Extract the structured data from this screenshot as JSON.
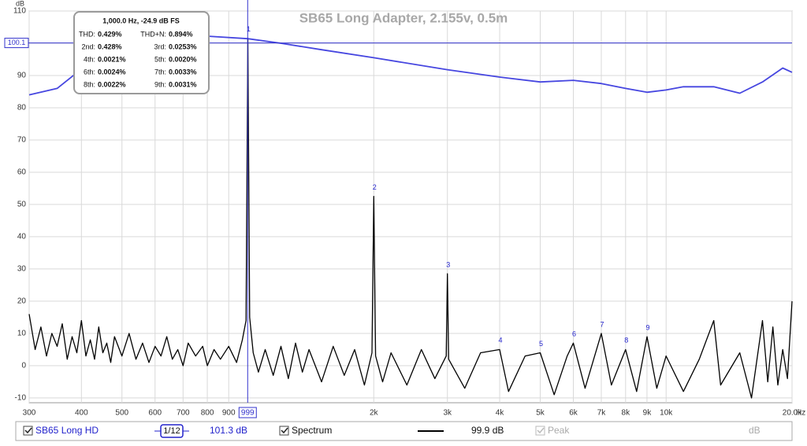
{
  "chart_data": {
    "type": "line",
    "title": "SB65 Long Adapter, 2.155v, 0.5m",
    "y_unit": "dB",
    "x_unit": "Hz",
    "xscale": "log",
    "grid": true,
    "xlim": [
      300,
      20000
    ],
    "ylim": [
      -11.5,
      110
    ],
    "xticks": [
      300,
      400,
      500,
      600,
      700,
      800,
      900,
      {
        "value": 2000,
        "label": "2k"
      },
      {
        "value": 3000,
        "label": "3k"
      },
      {
        "value": 4000,
        "label": "4k"
      },
      {
        "value": 5000,
        "label": "5k"
      },
      {
        "value": 6000,
        "label": "6k"
      },
      {
        "value": 7000,
        "label": "7k"
      },
      {
        "value": 8000,
        "label": "8k"
      },
      {
        "value": 9000,
        "label": "9k"
      },
      {
        "value": 10000,
        "label": "10k"
      },
      {
        "value": 20000,
        "label": "20.0k"
      }
    ],
    "yticks": [
      -10,
      0,
      10,
      20,
      30,
      40,
      50,
      60,
      70,
      80,
      90,
      100,
      110
    ],
    "cursor": {
      "x": 999,
      "y": 100.1
    },
    "series": [
      {
        "name": "Spectrum",
        "color": "#000000",
        "x": [
          300,
          310,
          320,
          330,
          340,
          350,
          360,
          370,
          380,
          390,
          400,
          410,
          420,
          430,
          440,
          450,
          460,
          470,
          480,
          500,
          520,
          540,
          560,
          580,
          600,
          620,
          640,
          660,
          680,
          700,
          720,
          750,
          780,
          800,
          830,
          860,
          900,
          940,
          970,
          990,
          1000,
          1010,
          1030,
          1060,
          1100,
          1150,
          1200,
          1250,
          1300,
          1350,
          1400,
          1500,
          1600,
          1700,
          1800,
          1900,
          1980,
          2000,
          2020,
          2100,
          2200,
          2400,
          2600,
          2800,
          2980,
          3000,
          3020,
          3300,
          3600,
          4000,
          4200,
          4600,
          5000,
          5400,
          5800,
          6000,
          6400,
          7000,
          7400,
          8000,
          8500,
          9000,
          9500,
          10000,
          11000,
          12000,
          13000,
          13500,
          15000,
          16000,
          17000,
          17500,
          18000,
          18500,
          19000,
          19500,
          20000
        ],
        "values": [
          16,
          5,
          12,
          3,
          10,
          6,
          13,
          2,
          9,
          4,
          14,
          3,
          8,
          2,
          12,
          4,
          7,
          1,
          9,
          3,
          10,
          2,
          7,
          1,
          6,
          3,
          9,
          2,
          5,
          0,
          7,
          3,
          6,
          0,
          5,
          2,
          6,
          1,
          8,
          14,
          101.5,
          15,
          4,
          -2,
          5,
          -3,
          6,
          -4,
          7,
          -2,
          5,
          -5,
          6,
          -3,
          5,
          -6,
          4,
          52.5,
          3,
          -5,
          4,
          -6,
          5,
          -4,
          3,
          28.5,
          2,
          -7,
          4,
          5,
          -8,
          3,
          4,
          -9,
          3,
          7,
          -7,
          10,
          -6,
          5,
          -8,
          9,
          -7,
          3,
          -8,
          2,
          14,
          -6,
          4,
          -10,
          14,
          -5,
          12,
          -6,
          5,
          -4,
          20
        ]
      },
      {
        "name": "SB65 Long HD",
        "color": "#4646e0",
        "x": [
          300,
          350,
          400,
          450,
          500,
          600,
          700,
          800,
          1000,
          1200,
          1500,
          2000,
          3000,
          4000,
          5000,
          6000,
          7000,
          8000,
          9000,
          10000,
          11000,
          13000,
          15000,
          17000,
          19000,
          20000
        ],
        "values": [
          84,
          86,
          92,
          98,
          101,
          102.3,
          102.5,
          102.2,
          101.4,
          100,
          98,
          95.5,
          91.8,
          89.5,
          88,
          88.5,
          87.5,
          86,
          84.8,
          85.5,
          86.5,
          86.5,
          84.5,
          88,
          92.3,
          91
        ]
      }
    ],
    "harmonics": [
      {
        "label": "1",
        "freq": 1000,
        "level": 101.5
      },
      {
        "label": "2",
        "freq": 2000,
        "level": 52.5
      },
      {
        "label": "3",
        "freq": 3000,
        "level": 28.5
      },
      {
        "label": "4",
        "freq": 4000,
        "level": 5
      },
      {
        "label": "5",
        "freq": 5000,
        "level": 4
      },
      {
        "label": "6",
        "freq": 6000,
        "level": 7
      },
      {
        "label": "7",
        "freq": 7000,
        "level": 10
      },
      {
        "label": "8",
        "freq": 8000,
        "level": 5
      },
      {
        "label": "9",
        "freq": 9000,
        "level": 9
      }
    ],
    "info_box": {
      "header": "1,000.0 Hz, -24.9 dB FS",
      "rows": [
        [
          "THD:",
          "0.429%",
          "THD+N:",
          "0.894%"
        ],
        [
          "2nd:",
          "0.428%",
          "3rd:",
          "0.0253%"
        ],
        [
          "4th:",
          "0.0021%",
          "5th:",
          "0.0020%"
        ],
        [
          "6th:",
          "0.0024%",
          "7th:",
          "0.0033%"
        ],
        [
          "8th:",
          "0.0022%",
          "9th:",
          "0.0031%"
        ]
      ]
    }
  },
  "legend_bar": {
    "name": "SB65 Long HD",
    "smoothing": "1/12",
    "level": "101.3 dB",
    "spectrum": "Spectrum",
    "spectrum_level": "99.9 dB",
    "peak": "Peak",
    "unit": "dB"
  }
}
